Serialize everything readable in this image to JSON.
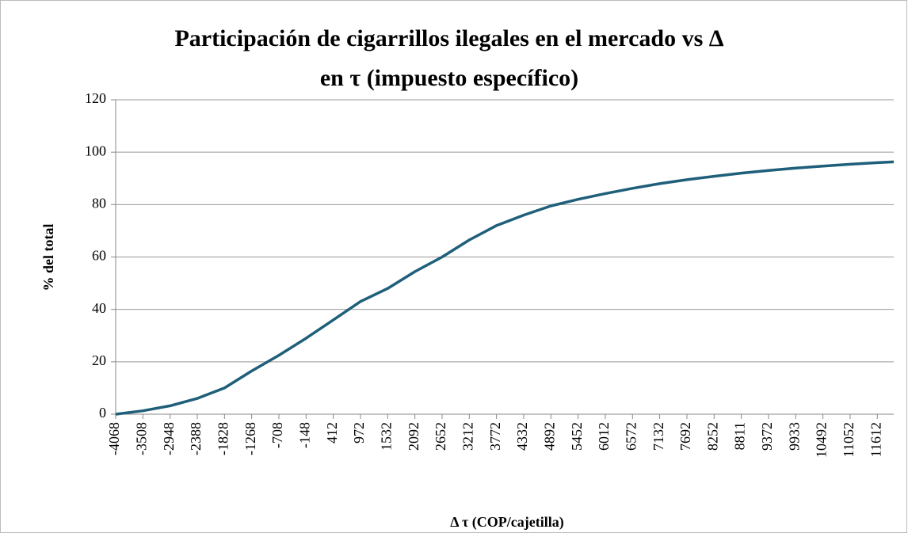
{
  "chart_data": {
    "type": "line",
    "title": [
      "Participación de cigarrillos ilegales en el mercado vs Δ",
      "en τ (impuesto específico)"
    ],
    "x_label": "Δ τ (COP/cajetilla)",
    "y_label": "% del total",
    "x": [
      -4068,
      -3508,
      -2948,
      -2388,
      -1828,
      -1268,
      -708,
      -148,
      412,
      972,
      1532,
      2092,
      2652,
      3212,
      3772,
      4332,
      4892,
      5452,
      6012,
      6572,
      7132,
      7692,
      8252,
      8811,
      9372,
      9933,
      10492,
      11052,
      11612,
      11950
    ],
    "series": [
      {
        "name": "Participación",
        "color": "#1f5f7a",
        "values": [
          0,
          1.3,
          3.2,
          6,
          10,
          16.5,
          22.5,
          29,
          36,
          43,
          48,
          54.4,
          60,
          66.5,
          72,
          76,
          79.5,
          82,
          84.2,
          86.2,
          88,
          89.5,
          90.8,
          92,
          93,
          93.9,
          94.7,
          95.4,
          96,
          96.3
        ]
      }
    ],
    "xlim": [
      -4068,
      11950
    ],
    "xticks": [
      -4068,
      -3508,
      -2948,
      -2388,
      -1828,
      -1268,
      -708,
      -148,
      412,
      972,
      1532,
      2092,
      2652,
      3212,
      3772,
      4332,
      4892,
      5452,
      6012,
      6572,
      7132,
      7692,
      8252,
      8811,
      9372,
      9933,
      10492,
      11052,
      11612
    ],
    "ylim": [
      0,
      120
    ],
    "yticks": [
      0,
      20,
      40,
      60,
      80,
      100,
      120
    ],
    "grid": true
  }
}
